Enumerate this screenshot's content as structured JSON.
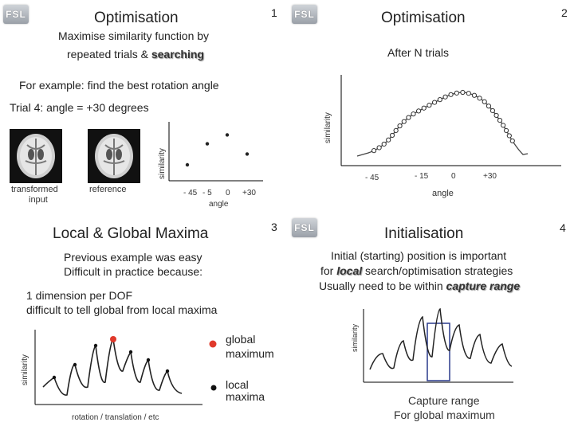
{
  "slides": [
    {
      "number": "1",
      "logo": "FSL",
      "title": "Optimisation",
      "line1": "Maximise similarity function by",
      "line2_prefix": "repeated trials & ",
      "line2_emph": "searching",
      "example": "For example: find the best rotation angle",
      "trial": "Trial 4: angle = +30 degrees",
      "img1_label_1": "transformed",
      "img1_label_2": "input",
      "img2_label": "reference",
      "ylabel": "similarity",
      "xlabel": "angle",
      "xticks": [
        "- 45",
        "- 5",
        "0",
        "+30"
      ]
    },
    {
      "number": "2",
      "logo": "FSL",
      "title": "Optimisation",
      "subtitle": "After N trials",
      "ylabel": "similarity",
      "xlabel": "angle",
      "xticks": [
        "- 45",
        "- 15",
        "0",
        "+30"
      ]
    },
    {
      "number": "3",
      "logo": "FSL",
      "title": "Local & Global Maxima",
      "line1": "Previous example was easy",
      "line2": "Difficult in practice because:",
      "line3": "1 dimension per DOF",
      "line4": "difficult to tell global from local maxima",
      "legend_global_1": "global",
      "legend_global_2": "maximum",
      "legend_local_1": "local",
      "legend_local_2": "maxima",
      "ylabel": "similarity",
      "xlabel": "rotation / translation / etc"
    },
    {
      "number": "4",
      "logo": "FSL",
      "title": "Initialisation",
      "line1": "Initial (starting) position is important",
      "line2_prefix": "for ",
      "line2_emph": "local",
      "line2_suffix": " search/optimisation strategies",
      "line3_prefix": "Usually need to be within ",
      "line3_emph": "capture range",
      "ylabel": "similarity",
      "caption1": "Capture range",
      "caption2": "For global maximum"
    }
  ],
  "colors": {
    "global_marker": "#e0392b",
    "local_marker": "#111111",
    "capture_box": "#2a3a8c"
  },
  "chart_data": [
    {
      "type": "scatter",
      "xlabel": "angle",
      "ylabel": "similarity",
      "x_ticks": [
        "- 45",
        "- 5",
        "0",
        "+30"
      ],
      "x": [
        -45,
        -5,
        0,
        30
      ],
      "y": [
        0.25,
        0.58,
        0.72,
        0.42
      ]
    },
    {
      "type": "line",
      "xlabel": "angle",
      "ylabel": "similarity",
      "x_ticks": [
        "- 45",
        "- 15",
        "0",
        "+30"
      ],
      "curve_with_markers": true
    },
    {
      "type": "line",
      "xlabel": "rotation / translation / etc",
      "ylabel": "similarity",
      "series_legend": [
        "global maximum",
        "local maxima"
      ]
    },
    {
      "type": "line",
      "ylabel": "similarity",
      "annotation": "Capture range For global maximum"
    }
  ]
}
